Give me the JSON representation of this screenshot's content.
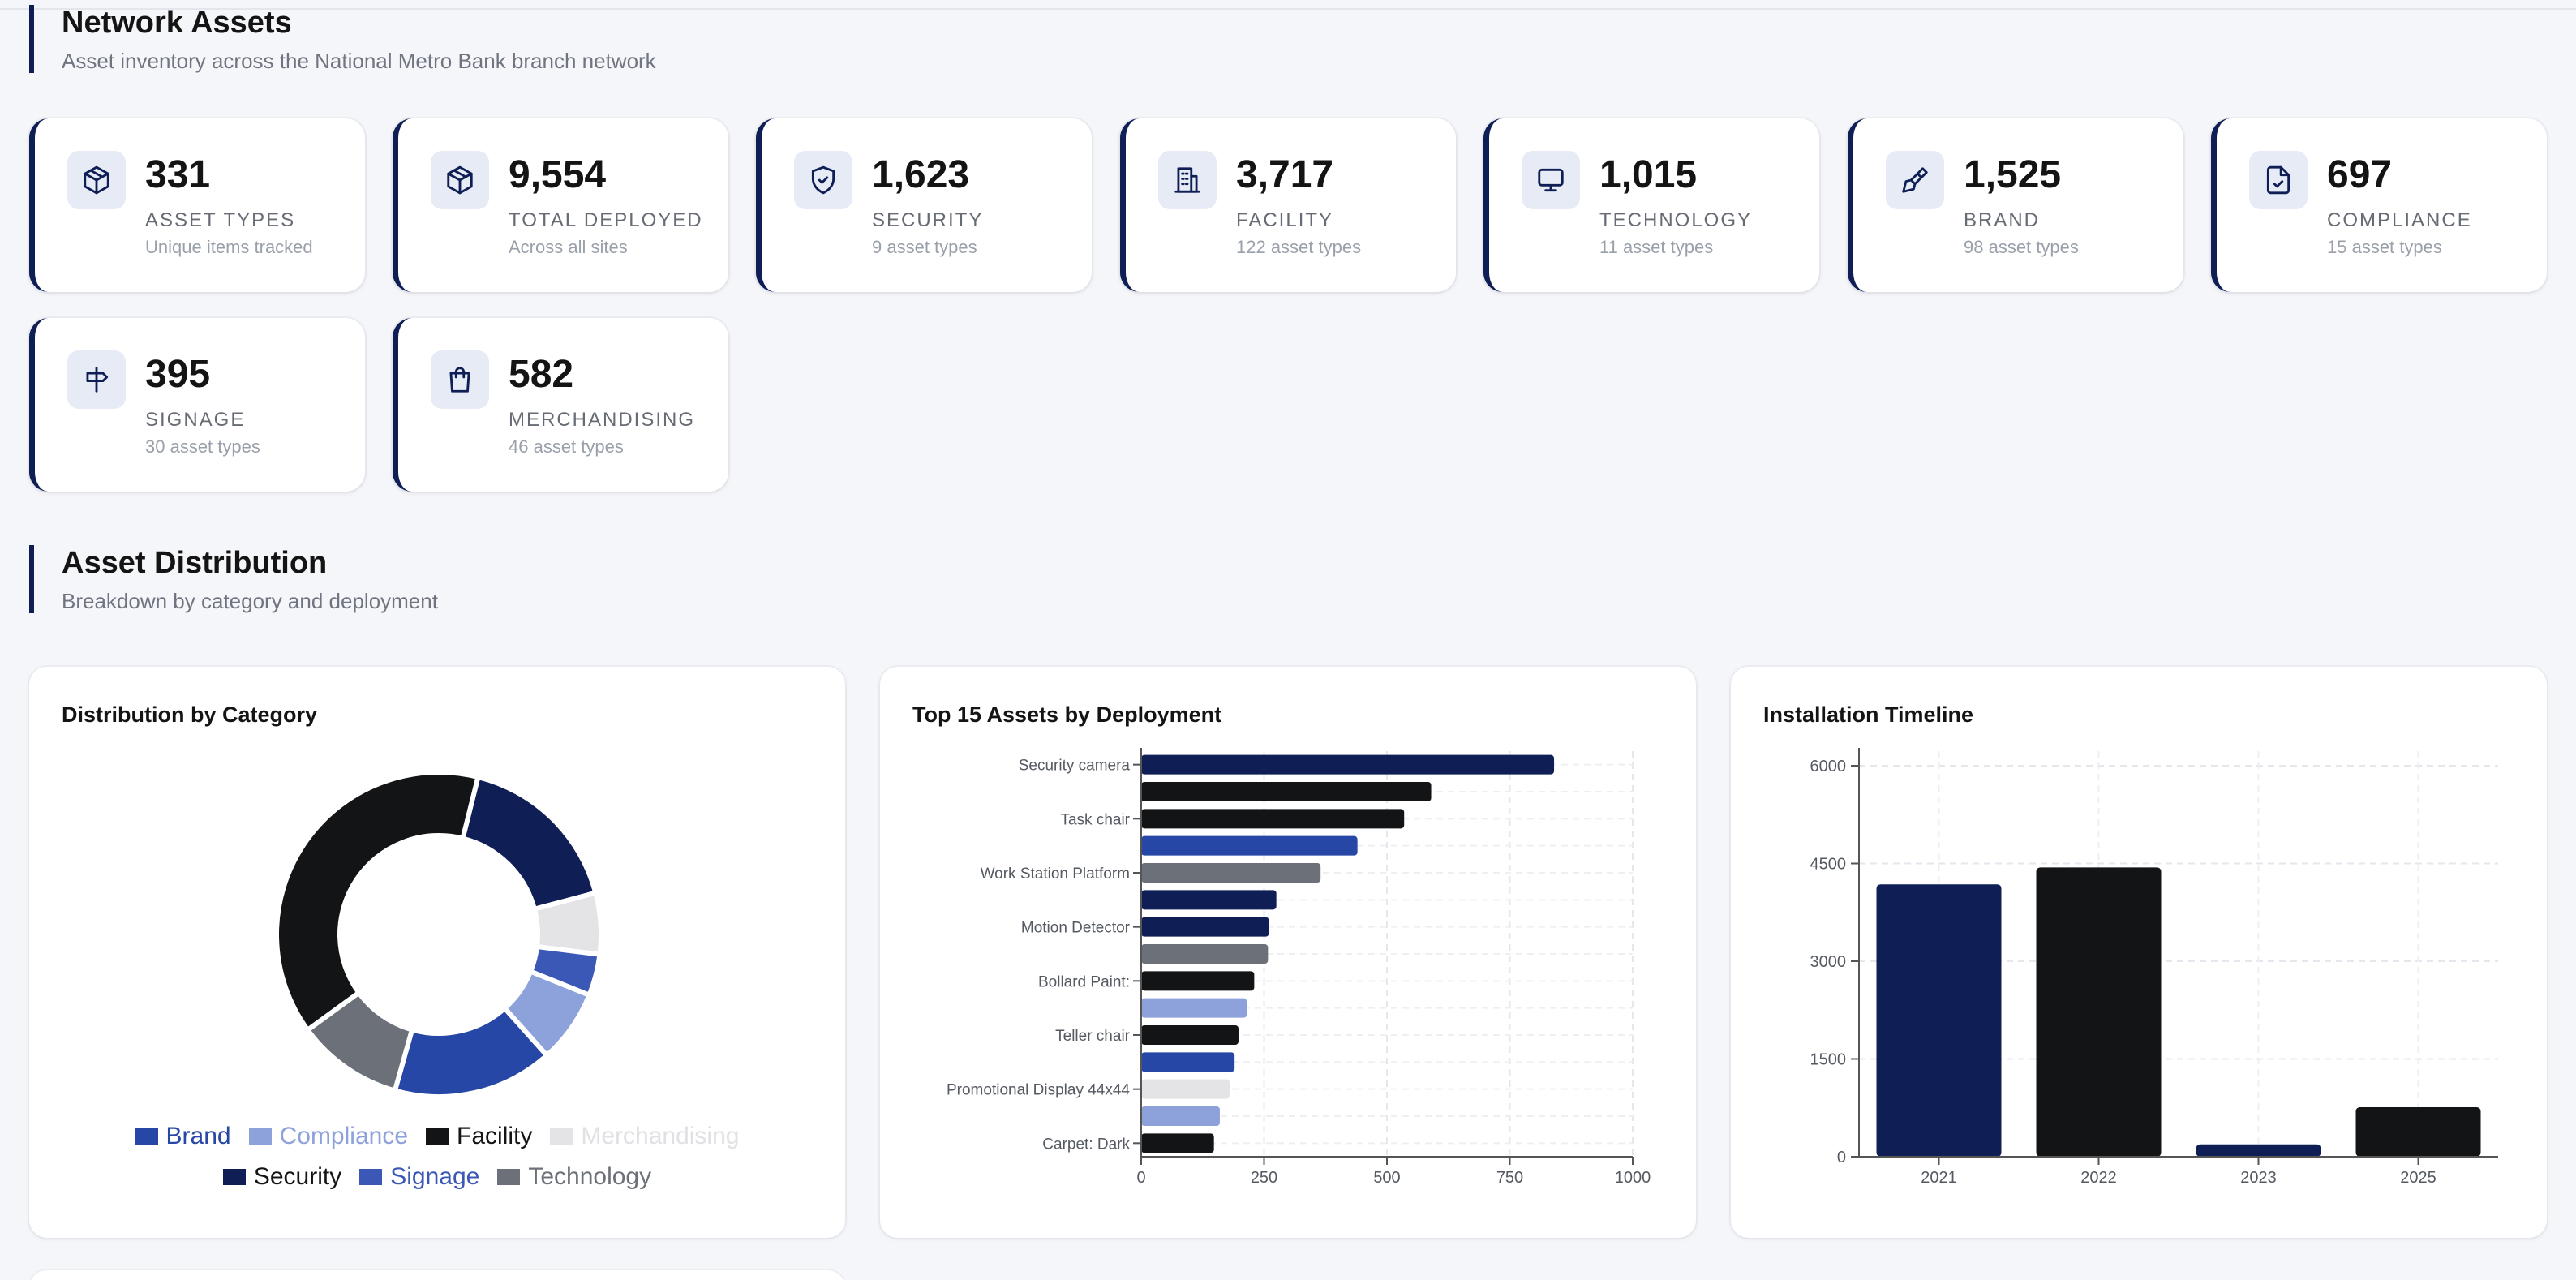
{
  "sections": {
    "assets": {
      "title": "Network Assets",
      "subtitle": "Asset inventory across the National Metro Bank branch network"
    },
    "distribution": {
      "title": "Asset Distribution",
      "subtitle": "Breakdown by category and deployment"
    }
  },
  "stats": [
    {
      "icon": "package-icon",
      "value": "331",
      "label": "ASSET TYPES",
      "sub": "Unique items tracked"
    },
    {
      "icon": "package-icon",
      "value": "9,554",
      "label": "TOTAL DEPLOYED",
      "sub": "Across all sites"
    },
    {
      "icon": "shield-check-icon",
      "value": "1,623",
      "label": "SECURITY",
      "sub": "9 asset types"
    },
    {
      "icon": "building-icon",
      "value": "3,717",
      "label": "FACILITY",
      "sub": "122 asset types"
    },
    {
      "icon": "monitor-icon",
      "value": "1,015",
      "label": "TECHNOLOGY",
      "sub": "11 asset types"
    },
    {
      "icon": "brush-icon",
      "value": "1,525",
      "label": "BRAND",
      "sub": "98 asset types"
    },
    {
      "icon": "file-check-icon",
      "value": "697",
      "label": "COMPLIANCE",
      "sub": "15 asset types"
    },
    {
      "icon": "signpost-icon",
      "value": "395",
      "label": "SIGNAGE",
      "sub": "30 asset types"
    },
    {
      "icon": "shopping-bag-icon",
      "value": "582",
      "label": "MERCHANDISING",
      "sub": "46 asset types"
    }
  ],
  "colors": {
    "navy": "#0f1f55",
    "black": "#131416",
    "blue": "#2647a5",
    "gray": "#6c7078",
    "light_blue": "#8da1db",
    "royal": "#3b58b7",
    "pale": "#e4e4e6"
  },
  "chart_data": [
    {
      "type": "pie",
      "title": "Distribution by Category",
      "legend": [
        {
          "name": "Brand",
          "color": "#2647a5"
        },
        {
          "name": "Compliance",
          "color": "#8da1db"
        },
        {
          "name": "Facility",
          "color": "#131416"
        },
        {
          "name": "Merchandising",
          "color": "#e4e4e6"
        },
        {
          "name": "Security",
          "color": "#0f1f55"
        },
        {
          "name": "Signage",
          "color": "#3b58b7"
        },
        {
          "name": "Technology",
          "color": "#6c7078"
        }
      ],
      "slices": [
        {
          "name": "Security",
          "value": 1623,
          "color": "#0f1f55"
        },
        {
          "name": "Merchandising",
          "value": 582,
          "color": "#e4e4e6"
        },
        {
          "name": "Signage",
          "value": 395,
          "color": "#3b58b7"
        },
        {
          "name": "Compliance",
          "value": 697,
          "color": "#8da1db"
        },
        {
          "name": "Brand",
          "value": 1525,
          "color": "#2647a5"
        },
        {
          "name": "Technology",
          "value": 1015,
          "color": "#6c7078"
        },
        {
          "name": "Facility",
          "value": 3717,
          "color": "#131416"
        }
      ]
    },
    {
      "type": "bar",
      "orientation": "horizontal",
      "title": "Top 15 Assets by Deployment",
      "categories": [
        "Security camera",
        "",
        "Task chair",
        "",
        "Work Station Platform",
        "",
        "Motion Detector",
        "",
        "Bollard Paint:",
        "",
        "Teller chair",
        "",
        "Promotional Display 44x44",
        "",
        "Carpet: Dark"
      ],
      "values": [
        840,
        590,
        535,
        440,
        365,
        275,
        260,
        258,
        230,
        215,
        198,
        190,
        180,
        160,
        148
      ],
      "colors": [
        "#0f1f55",
        "#131416",
        "#131416",
        "#2647a5",
        "#6c7078",
        "#0f1f55",
        "#0f1f55",
        "#6c7078",
        "#131416",
        "#8da1db",
        "#131416",
        "#2647a5",
        "#e4e4e6",
        "#8da1db",
        "#131416"
      ],
      "xlim": [
        0,
        1000
      ],
      "xticks": [
        0,
        250,
        500,
        750,
        1000
      ]
    },
    {
      "type": "bar",
      "title": "Installation Timeline",
      "categories": [
        "2021",
        "2022",
        "2023",
        "2025"
      ],
      "values": [
        4180,
        4440,
        190,
        760
      ],
      "colors": [
        "#0f1f55",
        "#131416",
        "#0f1f55",
        "#131416"
      ],
      "ylim": [
        0,
        6000
      ],
      "yticks": [
        0,
        1500,
        3000,
        4500,
        6000
      ]
    }
  ]
}
